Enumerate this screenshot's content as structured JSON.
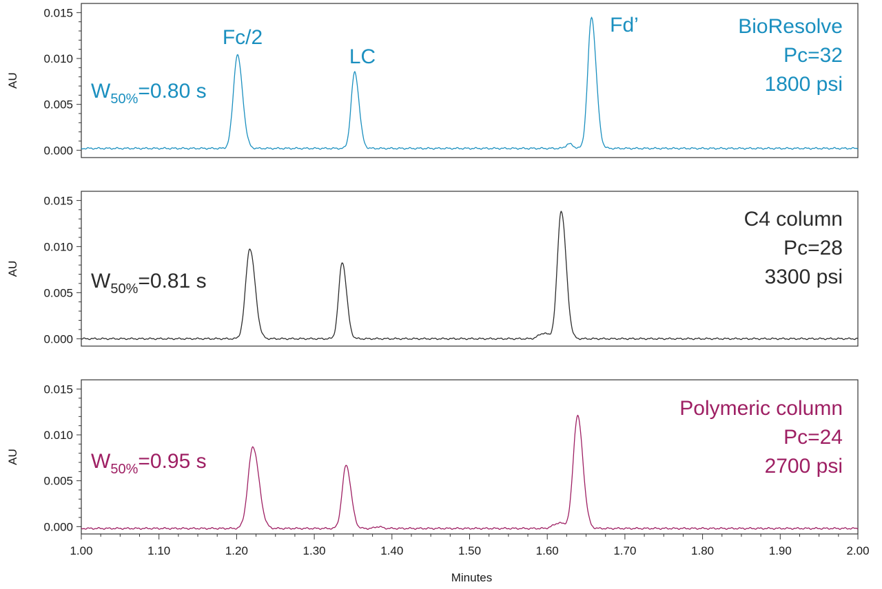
{
  "chart_data": {
    "type": "line",
    "xlabel": "Minutes",
    "ylabel": "AU",
    "xlim": [
      1.0,
      2.0
    ],
    "ylim": [
      -0.0008,
      0.016
    ],
    "x_ticks": [
      "1.00",
      "1.10",
      "1.20",
      "1.30",
      "1.40",
      "1.50",
      "1.60",
      "1.70",
      "1.80",
      "1.90",
      "2.00"
    ],
    "y_ticks": [
      "0.000",
      "0.005",
      "0.010",
      "0.015"
    ],
    "peak_labels": [
      "Fc/2",
      "LC",
      "Fd’"
    ],
    "panels": [
      {
        "name": "BioResolve",
        "color": "#1a8fbf",
        "width_prefix": "W",
        "width_sub": "50%",
        "width_value": "=0.80 s",
        "label_lines": [
          "BioResolve",
          "Pc=32",
          "1800 psi"
        ],
        "baseline": 0.0002,
        "peaks": [
          {
            "t": 1.201,
            "h": 0.0102,
            "w": 0.0052
          },
          {
            "t": 1.352,
            "h": 0.0083,
            "w": 0.0045
          },
          {
            "t": 1.628,
            "h": 0.0005,
            "w": 0.004
          },
          {
            "t": 1.657,
            "h": 0.0143,
            "w": 0.0048
          }
        ]
      },
      {
        "name": "C4 column",
        "color": "#2b2b2b",
        "width_prefix": "W",
        "width_sub": "50%",
        "width_value": "=0.81 s",
        "label_lines": [
          "C4 column",
          "Pc=28",
          "3300 psi"
        ],
        "baseline": 0.0,
        "peaks": [
          {
            "t": 1.217,
            "h": 0.0098,
            "w": 0.0054
          },
          {
            "t": 1.336,
            "h": 0.0083,
            "w": 0.0045
          },
          {
            "t": 1.595,
            "h": 0.0006,
            "w": 0.006
          },
          {
            "t": 1.618,
            "h": 0.0139,
            "w": 0.005
          }
        ]
      },
      {
        "name": "Polymeric column",
        "color": "#9e1f63",
        "width_prefix": "W",
        "width_sub": "50%",
        "width_value": "=0.95 s",
        "label_lines": [
          "Polymeric column",
          "Pc=24",
          "2700 psi"
        ],
        "baseline": -0.0002,
        "peaks": [
          {
            "t": 1.221,
            "h": 0.0089,
            "w": 0.0062
          },
          {
            "t": 1.341,
            "h": 0.0069,
            "w": 0.005
          },
          {
            "t": 1.382,
            "h": 0.0002,
            "w": 0.004
          },
          {
            "t": 1.615,
            "h": 0.0006,
            "w": 0.007
          },
          {
            "t": 1.639,
            "h": 0.0123,
            "w": 0.0055
          }
        ]
      }
    ]
  }
}
